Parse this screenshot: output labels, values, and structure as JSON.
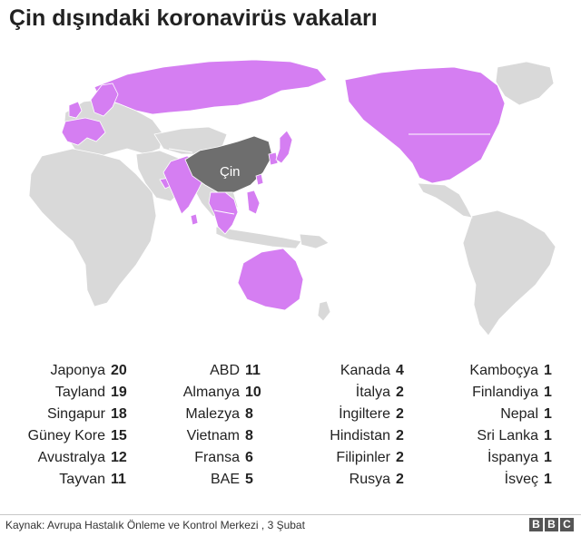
{
  "title": "Çin dışındaki koronavirüs vakaları",
  "map_label": "Çin",
  "colors": {
    "affected": "#d57ef2",
    "china": "#6e6e6e",
    "land": "#d9d9d9",
    "border": "#ffffff"
  },
  "columns": [
    [
      {
        "name": "Japonya",
        "count": "20"
      },
      {
        "name": "Tayland",
        "count": "19"
      },
      {
        "name": "Singapur",
        "count": "18"
      },
      {
        "name": "Güney Kore",
        "count": "15"
      },
      {
        "name": "Avustralya",
        "count": "12"
      },
      {
        "name": "Tayvan",
        "count": "11"
      }
    ],
    [
      {
        "name": "ABD",
        "count": "11"
      },
      {
        "name": "Almanya",
        "count": "10"
      },
      {
        "name": "Malezya",
        "count": "8"
      },
      {
        "name": "Vietnam",
        "count": "8"
      },
      {
        "name": "Fransa",
        "count": "6"
      },
      {
        "name": "BAE",
        "count": "5"
      }
    ],
    [
      {
        "name": "Kanada",
        "count": "4"
      },
      {
        "name": "İtalya",
        "count": "2"
      },
      {
        "name": "İngiltere",
        "count": "2"
      },
      {
        "name": "Hindistan",
        "count": "2"
      },
      {
        "name": "Filipinler",
        "count": "2"
      },
      {
        "name": "Rusya",
        "count": "2"
      }
    ],
    [
      {
        "name": "Kamboçya",
        "count": "1"
      },
      {
        "name": "Finlandiya",
        "count": "1"
      },
      {
        "name": "Nepal",
        "count": "1"
      },
      {
        "name": "Sri Lanka",
        "count": "1"
      },
      {
        "name": "İspanya",
        "count": "1"
      },
      {
        "name": "İsveç",
        "count": "1"
      }
    ]
  ],
  "source": "Kaynak: Avrupa Hastalık Önleme ve Kontrol Merkezi , 3 Şubat",
  "logo": [
    "B",
    "B",
    "C"
  ]
}
